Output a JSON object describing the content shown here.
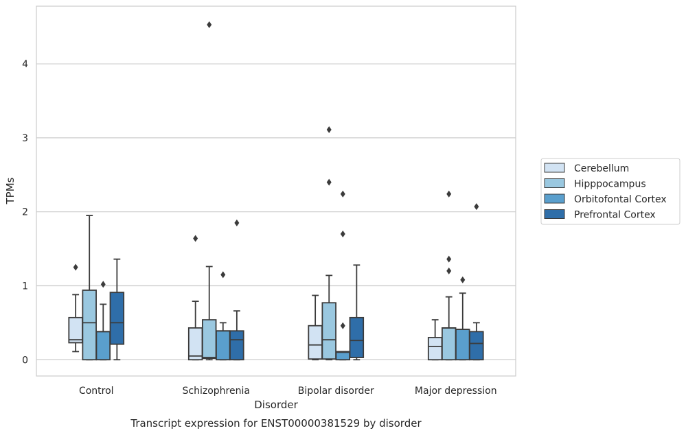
{
  "chart_data": {
    "type": "box",
    "title": "Transcript expression for ENST00000381529 by disorder",
    "xlabel": "Disorder",
    "ylabel": "TPMs",
    "ylim": [
      -0.22,
      4.78
    ],
    "yticks": [
      0,
      1,
      2,
      3,
      4
    ],
    "grid": "horizontal",
    "legend_position": "right",
    "categories": [
      "Control",
      "Schizophrenia",
      "Bipolar disorder",
      "Major depression"
    ],
    "series": [
      {
        "name": "Cerebellum",
        "color": "#d2e3f3",
        "boxes": [
          {
            "whislo": 0.11,
            "q1": 0.23,
            "med": 0.27,
            "q3": 0.57,
            "whishi": 0.88,
            "fliers": [
              1.25
            ]
          },
          {
            "whislo": 0.0,
            "q1": 0.0,
            "med": 0.05,
            "q3": 0.43,
            "whishi": 0.79,
            "fliers": [
              1.64
            ]
          },
          {
            "whislo": 0.0,
            "q1": 0.01,
            "med": 0.2,
            "q3": 0.46,
            "whishi": 0.87,
            "fliers": []
          },
          {
            "whislo": 0.0,
            "q1": 0.0,
            "med": 0.18,
            "q3": 0.3,
            "whishi": 0.54,
            "fliers": []
          }
        ]
      },
      {
        "name": "Hipppocampus",
        "color": "#9ac8e0",
        "boxes": [
          {
            "whislo": 0.0,
            "q1": 0.0,
            "med": 0.5,
            "q3": 0.94,
            "whishi": 1.95,
            "fliers": []
          },
          {
            "whislo": 0.0,
            "q1": 0.02,
            "med": 0.03,
            "q3": 0.54,
            "whishi": 1.26,
            "fliers": [
              4.53
            ]
          },
          {
            "whislo": 0.0,
            "q1": 0.01,
            "med": 0.27,
            "q3": 0.77,
            "whishi": 1.14,
            "fliers": [
              3.11,
              2.4
            ]
          },
          {
            "whislo": 0.0,
            "q1": 0.0,
            "med": 0.43,
            "q3": 0.43,
            "whishi": 0.85,
            "fliers": [
              2.24,
              1.36,
              1.2
            ]
          }
        ]
      },
      {
        "name": "Orbitofontal Cortex",
        "color": "#5a9fcd",
        "boxes": [
          {
            "whislo": 0.0,
            "q1": 0.0,
            "med": 0.38,
            "q3": 0.38,
            "whishi": 0.75,
            "fliers": [
              1.02
            ]
          },
          {
            "whislo": 0.0,
            "q1": 0.0,
            "med": 0.39,
            "q3": 0.39,
            "whishi": 0.5,
            "fliers": [
              1.15
            ]
          },
          {
            "whislo": 0.0,
            "q1": 0.0,
            "med": 0.1,
            "q3": 0.11,
            "whishi": 0.11,
            "fliers": [
              2.24,
              1.7,
              0.46
            ]
          },
          {
            "whislo": 0.0,
            "q1": 0.0,
            "med": 0.41,
            "q3": 0.41,
            "whishi": 0.9,
            "fliers": [
              1.08
            ]
          }
        ]
      },
      {
        "name": "Prefrontal Cortex",
        "color": "#2f6ea9",
        "boxes": [
          {
            "whislo": 0.0,
            "q1": 0.21,
            "med": 0.5,
            "q3": 0.91,
            "whishi": 1.36,
            "fliers": []
          },
          {
            "whislo": 0.0,
            "q1": 0.0,
            "med": 0.27,
            "q3": 0.39,
            "whishi": 0.66,
            "fliers": [
              1.85
            ]
          },
          {
            "whislo": 0.0,
            "q1": 0.03,
            "med": 0.26,
            "q3": 0.57,
            "whishi": 1.28,
            "fliers": []
          },
          {
            "whislo": 0.0,
            "q1": 0.0,
            "med": 0.22,
            "q3": 0.38,
            "whishi": 0.5,
            "fliers": [
              2.07
            ]
          }
        ]
      }
    ]
  }
}
